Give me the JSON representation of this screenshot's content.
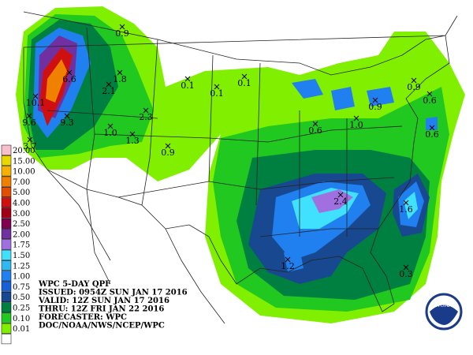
{
  "legend": {
    "items": [
      {
        "label": "20.00",
        "color": "#f8c0cc"
      },
      {
        "label": "15.00",
        "color": "#e8d800"
      },
      {
        "label": "10.00",
        "color": "#f8b000"
      },
      {
        "label": "7.00",
        "color": "#f08000"
      },
      {
        "label": "5.00",
        "color": "#e05000"
      },
      {
        "label": "4.00",
        "color": "#d01010"
      },
      {
        "label": "3.00",
        "color": "#a00018"
      },
      {
        "label": "2.50",
        "color": "#800050"
      },
      {
        "label": "2.00",
        "color": "#7030a0"
      },
      {
        "label": "1.75",
        "color": "#a070e0"
      },
      {
        "label": "1.50",
        "color": "#40e0ff"
      },
      {
        "label": "1.25",
        "color": "#30b8f0"
      },
      {
        "label": "1.00",
        "color": "#2080f0"
      },
      {
        "label": "0.75",
        "color": "#1860d8"
      },
      {
        "label": "0.50",
        "color": "#184890"
      },
      {
        "label": "0.25",
        "color": "#008040"
      },
      {
        "label": "0.10",
        "color": "#20c820"
      },
      {
        "label": "0.01",
        "color": "#80f000"
      }
    ]
  },
  "info": [
    "WPC 5-DAY QPF",
    "ISSUED: 0954Z SUN JAN 17 2016",
    "VALID: 12Z SUN JAN 17 2016",
    "THRU: 12Z FRI JAN 22 2016",
    "FORECASTER: WPC",
    "DOC/NOAA/NWS/NCEP/WPC"
  ],
  "logo": "NOAA",
  "points": [
    "0.9",
    "6.6",
    "1.8",
    "2.1",
    "10.1",
    "9.6",
    "9.3",
    "3.7",
    "2.3",
    "1.0",
    "1.3",
    "0.9",
    "0.1",
    "0.1",
    "0.1",
    "0.6",
    "1.0",
    "0.9",
    "0.9",
    "0.6",
    "0.6",
    "2.4",
    "1.6",
    "1.2",
    "0.3"
  ]
}
